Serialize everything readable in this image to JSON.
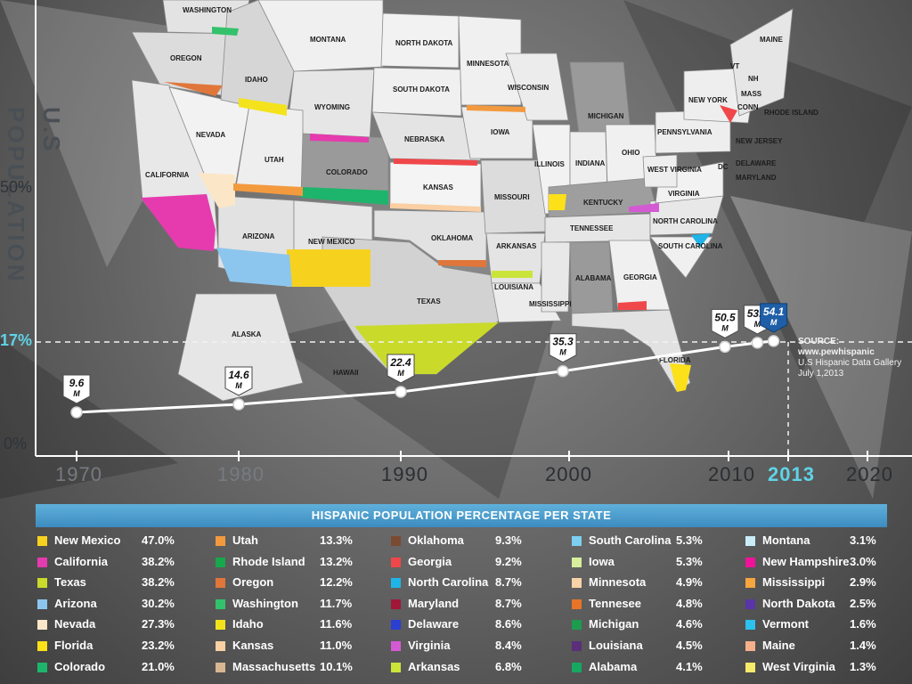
{
  "title": "U.S POPULATION",
  "y_labels": [
    "50%",
    "17%",
    "0%"
  ],
  "x_labels": [
    "1970",
    "1980",
    "1990",
    "2000",
    "2010",
    "2013",
    "2020"
  ],
  "source": {
    "line1": "SOURCE: www.pewhispanic",
    "line2": "U.S Hispanic Data Gallery",
    "line3": "July 1,2013"
  },
  "colors": {
    "accent": "#5fd3e6",
    "marker_highlight": "#1f5fa8",
    "banner": "#4a9fd3"
  },
  "chart_data": {
    "type": "line",
    "title": "U.S POPULATION",
    "x": [
      1970,
      1980,
      1990,
      2000,
      2010,
      2012,
      2013
    ],
    "values": [
      9.6,
      14.6,
      22.4,
      35.3,
      50.5,
      53.0,
      54.1
    ],
    "point_labels": [
      "9.6 M",
      "14.6 M",
      "22.4 M",
      "35.3 M",
      "50.5 M",
      "53.0 M",
      "54.1 M"
    ],
    "highlight": "2013",
    "reference_line_label": "17%",
    "xlim": [
      1970,
      2020
    ]
  },
  "table": {
    "title": "HISPANIC POPULATION PERCENTAGE PER STATE",
    "columns": [
      [
        {
          "state": "New Mexico",
          "pct": "47.0%",
          "color": "#f6d21e"
        },
        {
          "state": "California",
          "pct": "38.2%",
          "color": "#e53bae"
        },
        {
          "state": "Texas",
          "pct": "38.2%",
          "color": "#c9da2a"
        },
        {
          "state": "Arizona",
          "pct": "30.2%",
          "color": "#8cc6ee"
        },
        {
          "state": "Nevada",
          "pct": "27.3%",
          "color": "#fbe7c8"
        },
        {
          "state": "Florida",
          "pct": "23.2%",
          "color": "#fbe01a"
        },
        {
          "state": "Colorado",
          "pct": "21.0%",
          "color": "#1db56b"
        }
      ],
      [
        {
          "state": "Utah",
          "pct": "13.3%",
          "color": "#f39a3f"
        },
        {
          "state": "Rhode Island",
          "pct": "13.2%",
          "color": "#16a84a"
        },
        {
          "state": "Oregon",
          "pct": "12.2%",
          "color": "#e0763a"
        },
        {
          "state": "Washington",
          "pct": "11.7%",
          "color": "#33c26b"
        },
        {
          "state": "Idaho",
          "pct": "11.6%",
          "color": "#f4e31c"
        },
        {
          "state": "Kansas",
          "pct": "11.0%",
          "color": "#f9cfa3"
        },
        {
          "state": "Massachusetts",
          "pct": "10.1%",
          "color": "#d8b593"
        }
      ],
      [
        {
          "state": "Oklahoma",
          "pct": "9.3%",
          "color": "#7a4b32"
        },
        {
          "state": "Georgia",
          "pct": "9.2%",
          "color": "#f0474a"
        },
        {
          "state": "North Carolina",
          "pct": "8.7%",
          "color": "#1fb4e8"
        },
        {
          "state": "Maryland",
          "pct": "8.7%",
          "color": "#a0173a"
        },
        {
          "state": "Delaware",
          "pct": "8.6%",
          "color": "#2b3fd0"
        },
        {
          "state": "Virginia",
          "pct": "8.4%",
          "color": "#d45ad4"
        },
        {
          "state": "Arkansas",
          "pct": "6.8%",
          "color": "#cbe43a"
        }
      ],
      [
        {
          "state": "South Carolina",
          "pct": "5.3%",
          "color": "#7dcff1"
        },
        {
          "state": "Iowa",
          "pct": "5.3%",
          "color": "#d8ee9c"
        },
        {
          "state": "Minnesota",
          "pct": "4.9%",
          "color": "#f8d3a8"
        },
        {
          "state": "Tennesee",
          "pct": "4.8%",
          "color": "#e8742a"
        },
        {
          "state": "Michigan",
          "pct": "4.6%",
          "color": "#1d9b4e"
        },
        {
          "state": "Louisiana",
          "pct": "4.5%",
          "color": "#5b2e79"
        },
        {
          "state": "Alabama",
          "pct": "4.1%",
          "color": "#16a860"
        }
      ],
      [
        {
          "state": "Montana",
          "pct": "3.1%",
          "color": "#c9ecf8"
        },
        {
          "state": "New Hampshire",
          "pct": "3.0%",
          "color": "#f0139a"
        },
        {
          "state": "Mississippi",
          "pct": "2.9%",
          "color": "#f5a63c"
        },
        {
          "state": "North Dakota",
          "pct": "2.5%",
          "color": "#5a35a8"
        },
        {
          "state": "Vermont",
          "pct": "1.6%",
          "color": "#2cc1ee"
        },
        {
          "state": "Maine",
          "pct": "1.4%",
          "color": "#f4b08a"
        },
        {
          "state": "West Virginia",
          "pct": "1.3%",
          "color": "#f6ea6a"
        }
      ]
    ]
  },
  "map_labels": [
    "WASHINGTON",
    "OREGON",
    "CALIFORNIA",
    "NEVADA",
    "IDAHO",
    "MONTANA",
    "WYOMING",
    "UTAH",
    "ARIZONA",
    "COLORADO",
    "NEW MEXICO",
    "NORTH DAKOTA",
    "SOUTH DAKOTA",
    "NEBRASKA",
    "KANSAS",
    "OKLAHOMA",
    "TEXAS",
    "MINNESOTA",
    "IOWA",
    "MISSOURI",
    "ARKANSAS",
    "LOUISIANA",
    "WISCONSIN",
    "ILLINOIS",
    "MICHIGAN",
    "INDIANA",
    "OHIO",
    "KENTUCKY",
    "TENNESSEE",
    "MISSISSIPPI",
    "ALABAMA",
    "GEORGIA",
    "FLORIDA",
    "SOUTH CAROLINA",
    "NORTH CAROLINA",
    "VIRGINIA",
    "WEST VIRGINIA",
    "PENNSYLVANIA",
    "NEW YORK",
    "NEW JERSEY",
    "DELAWARE",
    "MARYLAND",
    "DC",
    "CONN",
    "RHODE ISLAND",
    "MASS",
    "VT",
    "NH",
    "MAINE",
    "ALASKA",
    "HAWAII"
  ]
}
